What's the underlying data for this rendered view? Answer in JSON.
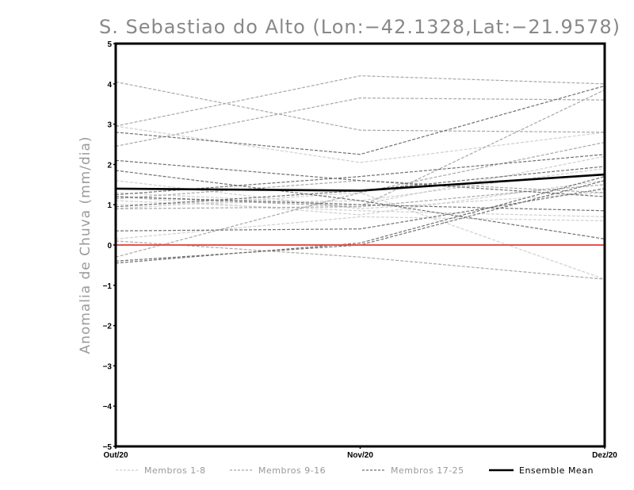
{
  "chart_data": {
    "type": "line",
    "title": "S. Sebastiao do Alto (Lon:−42.1328,Lat:−21.9578)",
    "xlabel": "",
    "ylabel": "Anomalia de Chuva (mm/dia)",
    "categories": [
      "Out/20",
      "Nov/20",
      "Dez/20"
    ],
    "ylim": [
      -5,
      5
    ],
    "yticks": [
      "−5",
      "−4",
      "−3",
      "−2",
      "−1",
      "0",
      "1",
      "2",
      "3",
      "4",
      "5"
    ],
    "ytick_values": [
      -5,
      -4,
      -3,
      -2,
      -1,
      0,
      1,
      2,
      3,
      4,
      5
    ],
    "zero_line_color": "#e8524a",
    "legend": [
      {
        "label": "Membros 1-8",
        "color": "#cfcfcf",
        "style": "dashed"
      },
      {
        "label": "Membros 9-16",
        "color": "#a8a8a8",
        "style": "dashed"
      },
      {
        "label": "Membros 17-25",
        "color": "#707070",
        "style": "dashed"
      },
      {
        "label": "Ensemble Mean",
        "color": "#000000",
        "style": "solid"
      }
    ],
    "series": [
      {
        "group": 1,
        "values": [
          2.95,
          2.05,
          2.8
        ]
      },
      {
        "group": 1,
        "values": [
          1.6,
          0.9,
          1.3
        ]
      },
      {
        "group": 1,
        "values": [
          1.3,
          1.0,
          2.2
        ]
      },
      {
        "group": 1,
        "values": [
          1.1,
          0.85,
          0.7
        ]
      },
      {
        "group": 1,
        "values": [
          1.2,
          0.75,
          1.6
        ]
      },
      {
        "group": 1,
        "values": [
          0.15,
          0.7,
          0.6
        ]
      },
      {
        "group": 1,
        "values": [
          0.9,
          1.3,
          -0.85
        ]
      },
      {
        "group": 1,
        "values": [
          1.0,
          1.1,
          1.9
        ]
      },
      {
        "group": 2,
        "values": [
          4.05,
          2.85,
          2.8
        ]
      },
      {
        "group": 2,
        "values": [
          2.95,
          4.2,
          4.0
        ]
      },
      {
        "group": 2,
        "values": [
          2.45,
          3.65,
          3.6
        ]
      },
      {
        "group": 2,
        "values": [
          0.1,
          -0.3,
          -0.85
        ]
      },
      {
        "group": 2,
        "values": [
          1.2,
          0.95,
          3.85
        ]
      },
      {
        "group": 2,
        "values": [
          -0.3,
          1.3,
          2.55
        ]
      },
      {
        "group": 2,
        "values": [
          1.15,
          1.6,
          1.3
        ]
      },
      {
        "group": 2,
        "values": [
          0.9,
          0.95,
          1.5
        ]
      },
      {
        "group": 3,
        "values": [
          2.8,
          2.25,
          3.95
        ]
      },
      {
        "group": 3,
        "values": [
          2.1,
          1.6,
          1.2
        ]
      },
      {
        "group": 3,
        "values": [
          1.85,
          1.1,
          0.15
        ]
      },
      {
        "group": 3,
        "values": [
          1.25,
          1.7,
          2.25
        ]
      },
      {
        "group": 3,
        "values": [
          0.35,
          0.4,
          1.4
        ]
      },
      {
        "group": 3,
        "values": [
          -0.4,
          0.0,
          1.6
        ]
      },
      {
        "group": 3,
        "values": [
          1.2,
          1.0,
          0.85
        ]
      },
      {
        "group": 3,
        "values": [
          0.95,
          1.35,
          1.95
        ]
      },
      {
        "group": 3,
        "values": [
          -0.45,
          0.05,
          1.7
        ]
      }
    ],
    "mean": {
      "name": "Ensemble Mean",
      "values": [
        1.4,
        1.35,
        1.75
      ]
    }
  }
}
